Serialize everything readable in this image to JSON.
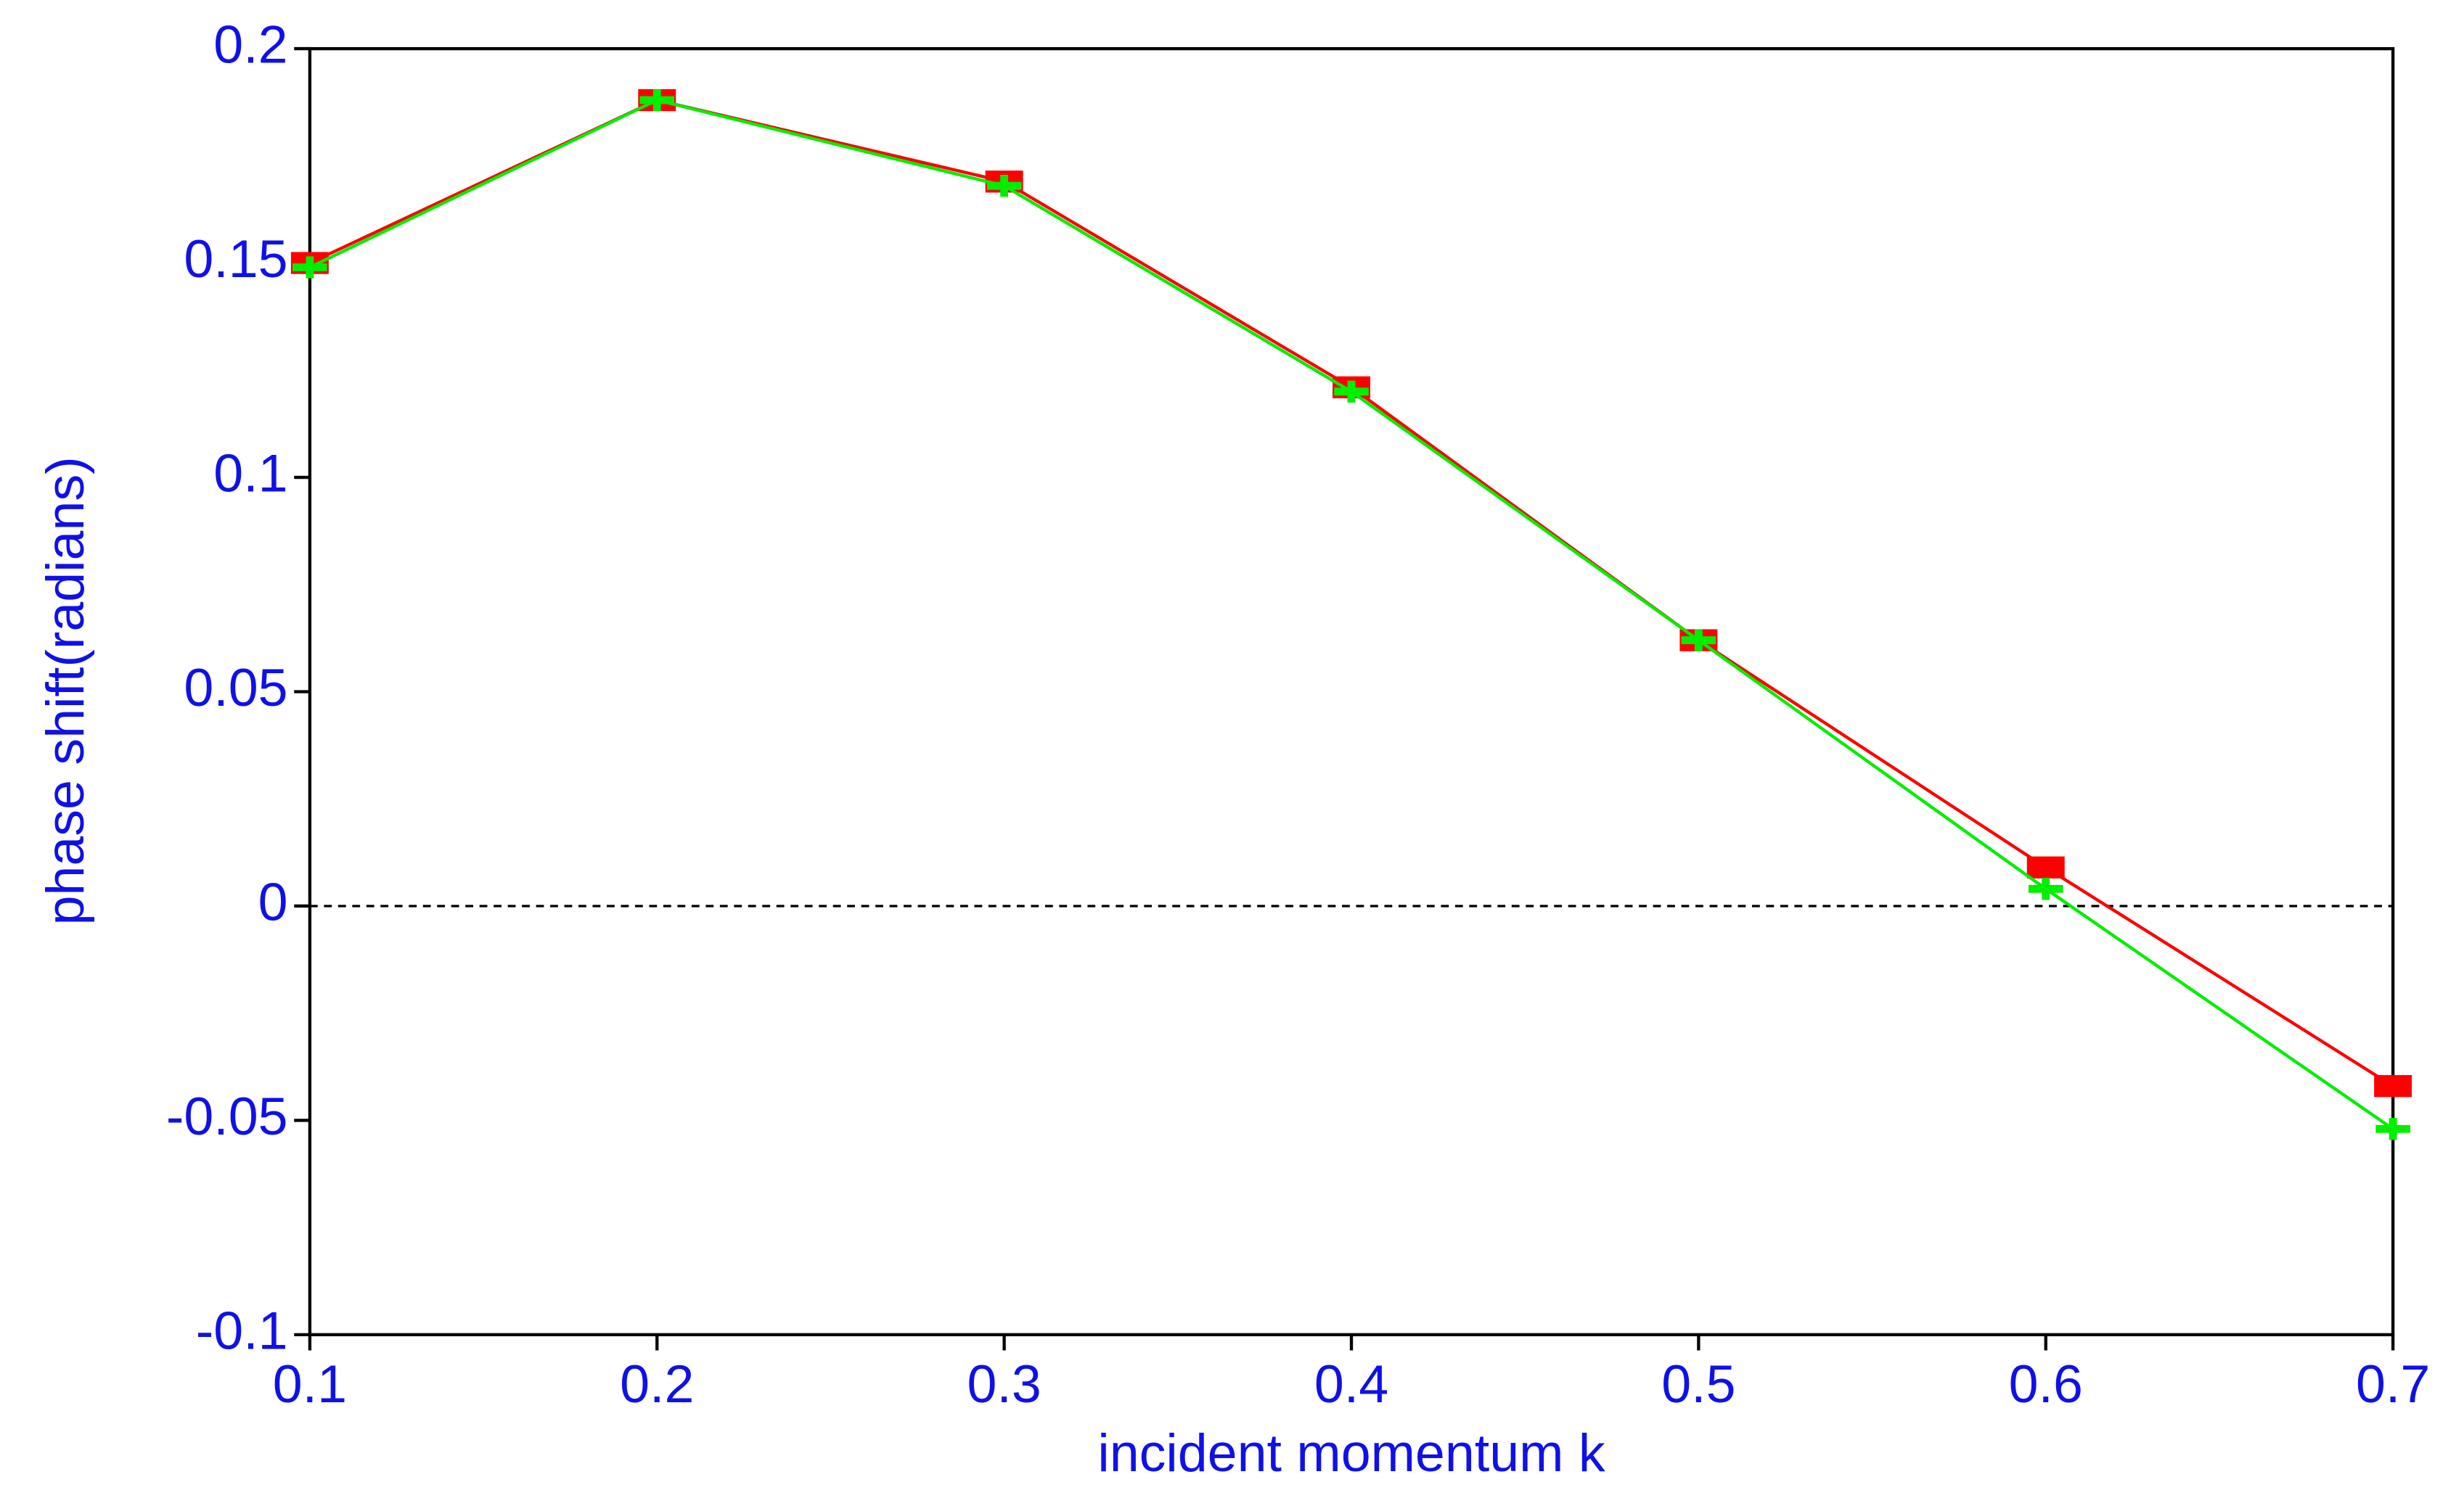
{
  "chart_data": {
    "type": "line",
    "x_label": "incident momentum k",
    "y_label": "phase shift(radians)",
    "x": [
      0.1,
      0.2,
      0.3,
      0.4,
      0.5,
      0.6,
      0.7
    ],
    "series": [
      {
        "color": "#ff0000",
        "marker": "square",
        "values": [
          0.15,
          0.188,
          0.169,
          0.121,
          0.062,
          0.009,
          -0.042
        ]
      },
      {
        "color": "#00ee00",
        "marker": "plus",
        "values": [
          0.149,
          0.188,
          0.168,
          0.12,
          0.062,
          0.004,
          -0.052
        ]
      }
    ],
    "xlim": [
      0.1,
      0.7
    ],
    "xticks": [
      0.1,
      0.2,
      0.3,
      0.4,
      0.5,
      0.6,
      0.7
    ],
    "ylim": [
      -0.1,
      0.2
    ],
    "yticks": [
      -0.1,
      -0.05,
      0,
      0.05,
      0.1,
      0.15,
      0.2
    ],
    "hlines": [
      0
    ]
  }
}
